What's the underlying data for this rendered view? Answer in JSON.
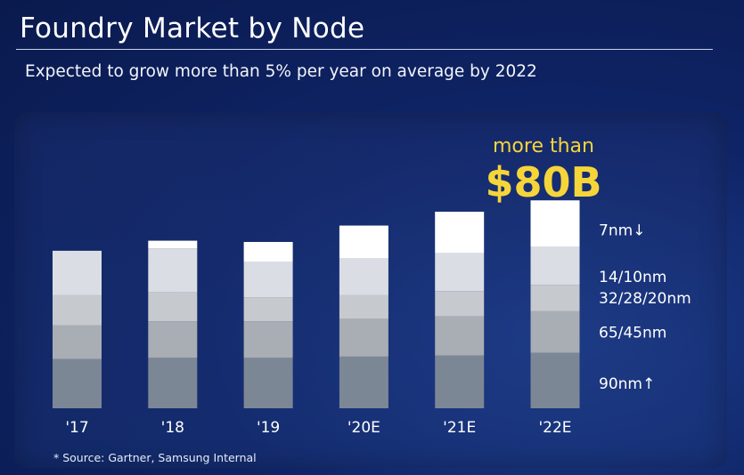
{
  "header": {
    "title": "Foundry Market by Node",
    "subtitle": "Expected to grow more than 5% per year on average by 2022"
  },
  "callout": {
    "line1": "more than",
    "line2": "$80B"
  },
  "footer": {
    "source": "* Source: Gartner, Samsung Internal"
  },
  "colors": {
    "accent": "#f6d53a",
    "segments": [
      "#7c8796",
      "#a9adb4",
      "#c6c9ce",
      "#dadde3",
      "#ffffff"
    ]
  },
  "chart_data": {
    "type": "bar",
    "stacked": true,
    "title": "Foundry Market by Node",
    "categories": [
      "'17",
      "'18",
      "'19",
      "'20E",
      "'21E",
      "'22E"
    ],
    "series": [
      {
        "name": "90nm↑",
        "values": [
          19.5,
          20,
          20,
          20.5,
          21,
          22
        ]
      },
      {
        "name": "65/45nm",
        "values": [
          13.5,
          14.5,
          14.5,
          15,
          15.5,
          16.5
        ]
      },
      {
        "name": "32/28/20nm",
        "values": [
          12,
          11.5,
          9.5,
          9.5,
          10,
          10.5
        ]
      },
      {
        "name": "14/10nm",
        "values": [
          17.5,
          17.5,
          14,
          14.5,
          15,
          15
        ]
      },
      {
        "name": "7nm↓",
        "values": [
          0,
          3,
          8,
          13,
          16.5,
          18.5
        ]
      }
    ],
    "legend": [
      "7nm↓",
      "14/10nm",
      "32/28/20nm",
      "65/45nm",
      "90nm↑"
    ],
    "legend_position": "right",
    "xlabel": "",
    "ylabel": "",
    "ylim": [
      0,
      90
    ],
    "callout": "more than $80B",
    "source": "* Source: Gartner, Samsung Internal"
  }
}
